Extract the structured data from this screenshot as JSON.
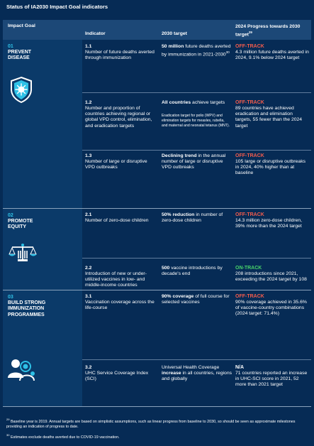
{
  "page_title": "Status of IA2030 Impact Goal indicators",
  "header": {
    "goal": "Impact Goal",
    "indicator": "Indicator",
    "target": "2030 target",
    "progress": "2024 Progress towards 2030 target",
    "progress_sup": "29"
  },
  "goals": [
    {
      "num": "01",
      "name": "PREVENT DISEASE",
      "icon": "shield-virus-icon"
    },
    {
      "num": "02",
      "name": "PROMOTE EQUITY",
      "icon": "scales-justice-icon"
    },
    {
      "num": "03",
      "name": "BUILD STRONG IMMUNIZATION PROGRAMMES",
      "icon": "people-group-icon"
    }
  ],
  "rows": [
    {
      "idx": "1.1",
      "indicator": "Number of future deaths averted through immunization",
      "target_bold": "50 million",
      "target_rest": " future deaths averted by immunization in 2021-2030",
      "target_sup": "30",
      "target_sub": "",
      "status": "OFF-TRACK",
      "progress": "4.3 million future deaths averted in 2024, 9.1% below 2024 target"
    },
    {
      "idx": "1.2",
      "indicator": "Number and proportion of countries achieving regional or global VPD control, elimination, and eradication targets",
      "target_bold": "All countries",
      "target_rest": " achieve targets",
      "target_sup": "",
      "target_sub": "Eradication target for polio (WPV) and elimination targets for measles, rubella, and maternal and neonatal tetanus (MNT).",
      "status": "OFF-TRACK",
      "progress": "89 countries have achieved eradication and elimination targets, 55 fewer than the 2024 target"
    },
    {
      "idx": "1.3",
      "indicator": "Number of large or disruptive VPD outbreaks",
      "target_bold": "Declining trend",
      "target_rest": " in the annual number of large or disruptive VPD outbreaks",
      "target_sup": "",
      "target_sub": "",
      "status": "OFF-TRACK",
      "progress": "105 large or disruptive outbreaks in 2024, 40% higher than at baseline"
    },
    {
      "idx": "2.1",
      "indicator": "Number of zero-dose children",
      "target_bold": "50% reduction",
      "target_rest": " in number of zero-dose children",
      "target_sup": "",
      "target_sub": "",
      "status": "OFF-TRACK",
      "progress": "14.3 million zero-dose children, 39% more than the 2024 target"
    },
    {
      "idx": "2.2",
      "indicator": "Introduction of new or under-utilized vaccines in low- and middle-income countries",
      "target_bold": "500",
      "target_rest": " vaccine introductions by decade's end",
      "target_sup": "",
      "target_sub": "",
      "status": "ON-TRACK",
      "progress": "208 introductions since 2021, exceeding the 2024 target by 108"
    },
    {
      "idx": "3.1",
      "indicator": "Vaccination coverage across the life-course",
      "target_bold": "90% coverage",
      "target_rest": " of full course for selected vaccines",
      "target_sup": "",
      "target_sub": "",
      "status": "OFF-TRACK",
      "progress": "90% coverage achieved in 35.6% of vaccine-country combinations (2024 target: 71.4%)"
    },
    {
      "idx": "3.2",
      "indicator": "UHC Service Coverage Index (SCI)",
      "target_bold": "",
      "target_rest": "Universal Health Coverage",
      "target_bold2": "increase",
      "target_rest2": " in all countries, regions and globally",
      "target_sup": "",
      "target_sub": "",
      "status": "N/A",
      "progress": "71 countries reported an increase in UHC-SCI score in 2021, 52 more than 2021 target"
    }
  ],
  "footnotes": [
    {
      "sup": "29",
      "text": "Baseline year is 2019. Annual targets are based on simplistic assumptions, such as linear progress from baseline to 2030, so should be seen as approximate milestones providing an indication of progress to date."
    },
    {
      "sup": "30",
      "text": "Estimates exclude deaths averted due to COVID-19 vaccination."
    }
  ],
  "colors": {
    "background": "#062b55",
    "header": "#1c4877",
    "goal_column": "#0b3a69",
    "goal_accent": "#2ec1e6",
    "off_track": "#f45c4c",
    "on_track": "#47d36a"
  }
}
